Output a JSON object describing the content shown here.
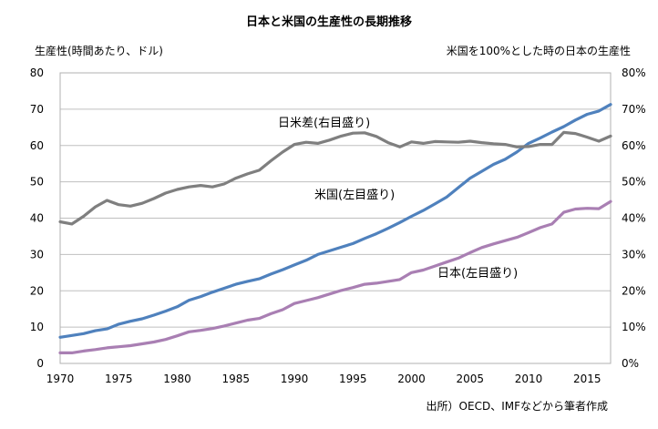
{
  "chart_data": {
    "type": "line",
    "title": "日本と米国の生産性の長期推移",
    "ylabel_left": "生産性(時間あたり、ドル)",
    "ylabel_right": "米国を100%とした時の日本の生産性",
    "source": "出所）OECD、IMFなどから筆者作成",
    "xlim": [
      1970,
      2017
    ],
    "ylim_left": [
      0,
      80
    ],
    "ylim_right": [
      0,
      80
    ],
    "x_ticks": [
      1970,
      1975,
      1980,
      1985,
      1990,
      1995,
      2000,
      2005,
      2010,
      2015
    ],
    "left_ticks": [
      "0",
      "10",
      "20",
      "30",
      "40",
      "50",
      "60",
      "70",
      "80"
    ],
    "right_ticks": [
      "0%",
      "10%",
      "20%",
      "30%",
      "40%",
      "50%",
      "60%",
      "70%",
      "80%"
    ],
    "grid": true,
    "x": [
      1970,
      1971,
      1972,
      1973,
      1974,
      1975,
      1976,
      1977,
      1978,
      1979,
      1980,
      1981,
      1982,
      1983,
      1984,
      1985,
      1986,
      1987,
      1988,
      1989,
      1990,
      1991,
      1992,
      1993,
      1994,
      1995,
      1996,
      1997,
      1998,
      1999,
      2000,
      2001,
      2002,
      2003,
      2004,
      2005,
      2006,
      2007,
      2008,
      2009,
      2010,
      2011,
      2012,
      2013,
      2014,
      2015,
      2016,
      2017
    ],
    "series": [
      {
        "name": "米国（左目盛り）",
        "axis": "left",
        "color": "#4f81bd",
        "values": [
          7.2,
          7.7,
          8.2,
          9.0,
          9.5,
          10.8,
          11.6,
          12.3,
          13.3,
          14.4,
          15.6,
          17.4,
          18.4,
          19.6,
          20.7,
          21.8,
          22.6,
          23.3,
          24.6,
          25.8,
          27.1,
          28.4,
          30.0,
          31.0,
          32.0,
          33.0,
          34.4,
          35.7,
          37.2,
          38.8,
          40.5,
          42.1,
          43.9,
          45.8,
          48.4,
          51.0,
          52.9,
          54.8,
          56.2,
          58.2,
          60.6,
          62.1,
          63.7,
          65.2,
          67.0,
          68.6,
          69.5,
          71.3
        ]
      },
      {
        "name": "日本（左目盛り）",
        "axis": "left",
        "color": "#a97fb3",
        "values": [
          2.9,
          2.9,
          3.4,
          3.8,
          4.3,
          4.6,
          4.9,
          5.4,
          5.9,
          6.6,
          7.6,
          8.7,
          9.1,
          9.6,
          10.3,
          11.1,
          11.9,
          12.4,
          13.7,
          14.8,
          16.5,
          17.3,
          18.1,
          19.1,
          20.1,
          20.9,
          21.8,
          22.1,
          22.6,
          23.1,
          25.0,
          25.7,
          26.8,
          27.9,
          29.0,
          30.5,
          31.9,
          32.9,
          33.8,
          34.7,
          36.0,
          37.4,
          38.4,
          41.6,
          42.5,
          42.7,
          42.6,
          44.6
        ]
      },
      {
        "name": "日米差（右目盛り）",
        "axis": "right",
        "color": "#7f7f7f",
        "values": [
          39.0,
          38.4,
          40.5,
          43.1,
          44.9,
          43.7,
          43.3,
          44.1,
          45.4,
          46.9,
          47.9,
          48.6,
          49.0,
          48.6,
          49.4,
          51.0,
          52.2,
          53.2,
          55.8,
          58.2,
          60.3,
          60.9,
          60.6,
          61.5,
          62.6,
          63.4,
          63.5,
          62.5,
          60.8,
          59.6,
          61.0,
          60.6,
          61.1,
          61.0,
          60.9,
          61.2,
          60.8,
          60.5,
          60.3,
          59.6,
          59.7,
          60.3,
          60.3,
          63.6,
          63.3,
          62.3,
          61.2,
          62.6
        ]
      }
    ],
    "annotations": [
      "日米差(右目盛り)",
      "米国(左目盛り)",
      "日本(左目盛り)"
    ]
  }
}
